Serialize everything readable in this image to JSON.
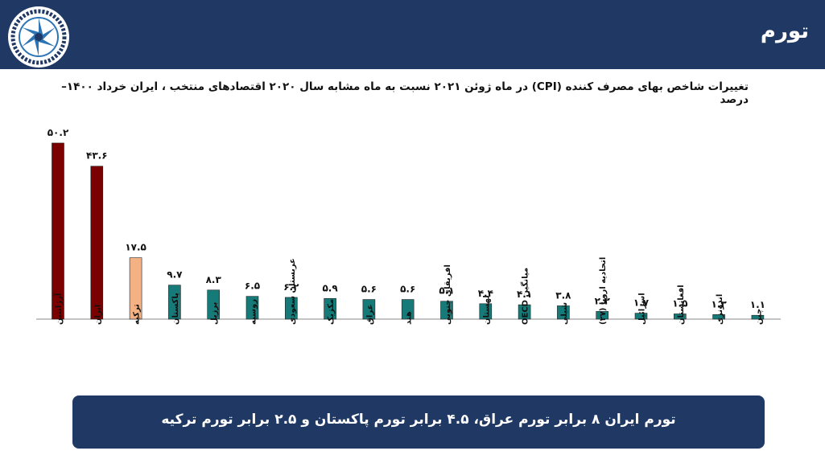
{
  "header": {
    "title": "تورم"
  },
  "note": {
    "text": "تورم ایران ۸ برابر تورم عراق، ۴.۵ برابر تورم پاکستان و ۲.۵ برابر تورم ترکیه"
  },
  "colors": {
    "header_bg": "#1f3864",
    "bar_high": "#7b0000",
    "bar_mid": "#f4b183",
    "bar_low": "#167a78"
  },
  "chart_data": {
    "type": "bar",
    "title": "تغییرات شاخص بهای مصرف کننده (CPI)  در ماه ژوئن ۲۰۲۱ نسبت به ماه مشابه سال ۲۰۲۰ اقتصادهای منتخب ، ایران خرداد ۱۴۰۰– درصد",
    "categories": [
      "آرژانتین",
      "ایران",
      "ترکیه",
      "پاکستان",
      "برزیل",
      "روسیه",
      "عربستان سعودی",
      "مکزیک",
      "عراق",
      "هند",
      "افریقای جنوبی",
      "لهستان",
      "میانگین OECD",
      "شیلی",
      "اتحادیه اروپا (۲۷)",
      "اسرائیل",
      "افغانستان",
      "اندونزی",
      "چین"
    ],
    "values": [
      50.2,
      43.6,
      17.5,
      9.7,
      8.3,
      6.5,
      6.2,
      5.9,
      5.6,
      5.6,
      5.1,
      4.4,
      4.1,
      3.8,
      2.2,
      1.7,
      1.5,
      1.3,
      1.1
    ],
    "value_labels": [
      "۵۰.۲",
      "۴۳.۶",
      "۱۷.۵",
      "۹.۷",
      "۸.۳",
      "۶.۵",
      "۶.۲",
      "۵.۹",
      "۵.۶",
      "۵.۶",
      "۵.۱",
      "۴.۴",
      "۴.۱",
      "۳.۸",
      "۲.۲",
      "۱.۷",
      "۱.۵",
      "۱.۳",
      "۱.۱"
    ],
    "bar_colors": [
      "#7b0000",
      "#7b0000",
      "#f4b183",
      "#167a78",
      "#167a78",
      "#167a78",
      "#167a78",
      "#167a78",
      "#167a78",
      "#167a78",
      "#167a78",
      "#167a78",
      "#167a78",
      "#167a78",
      "#167a78",
      "#167a78",
      "#167a78",
      "#167a78",
      "#167a78"
    ],
    "ylim": [
      0,
      55
    ],
    "grid": false,
    "legend": "none"
  }
}
